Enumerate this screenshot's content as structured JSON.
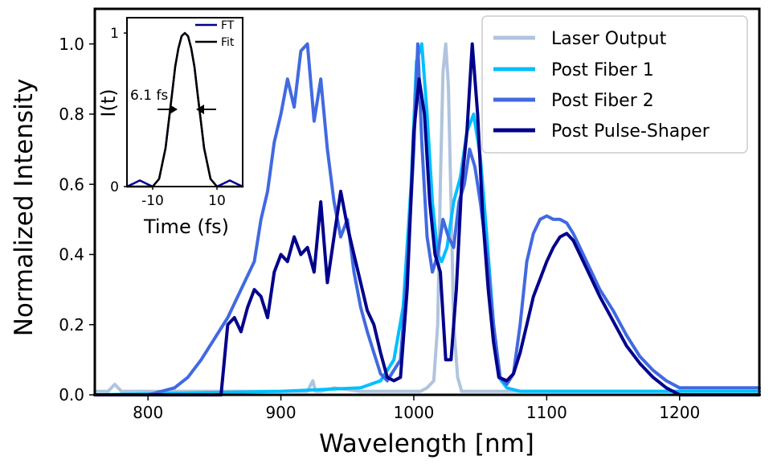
{
  "chart_data": [
    {
      "type": "line",
      "title": "",
      "xlabel": "Wavelength [nm]",
      "ylabel": "Normalized Intensity",
      "xlim": [
        760,
        1260
      ],
      "ylim": [
        0,
        1.1
      ],
      "xticks": [
        800,
        900,
        1000,
        1100,
        1200
      ],
      "xtick_labels": [
        "800",
        "900",
        "1000",
        "1100",
        "1200"
      ],
      "yticks": [
        0,
        0.2,
        0.4,
        0.6,
        0.8,
        1.0
      ],
      "ytick_labels": [
        "0.0",
        "0.2",
        "0.4",
        "0.6",
        "0.8",
        "1.0"
      ],
      "grid": false,
      "legend_position": "top-right",
      "series": [
        {
          "name": "Laser Output",
          "color": "#b0c4de",
          "x": [
            760,
            770,
            775,
            780,
            790,
            800,
            850,
            900,
            920,
            924,
            926,
            930,
            940,
            960,
            980,
            995,
            1005,
            1010,
            1015,
            1018,
            1020,
            1022,
            1024,
            1026,
            1028,
            1030,
            1033,
            1036,
            1040,
            1050,
            1100,
            1200,
            1260
          ],
          "values": [
            0.01,
            0.01,
            0.03,
            0.01,
            0.01,
            0.01,
            0.01,
            0.01,
            0.01,
            0.04,
            0.01,
            0.01,
            0.02,
            0.01,
            0.01,
            0.01,
            0.01,
            0.02,
            0.04,
            0.2,
            0.6,
            0.92,
            1.0,
            0.88,
            0.55,
            0.2,
            0.05,
            0.01,
            0.01,
            0.01,
            0.01,
            0.01,
            0.01
          ]
        },
        {
          "name": "Post Fiber 1",
          "color": "#00bfff",
          "x": [
            760,
            900,
            960,
            975,
            985,
            992,
            998,
            1002,
            1006,
            1010,
            1014,
            1018,
            1021,
            1025,
            1030,
            1035,
            1040,
            1045,
            1050,
            1055,
            1060,
            1064,
            1070,
            1080,
            1260
          ],
          "values": [
            0.0,
            0.01,
            0.02,
            0.04,
            0.1,
            0.25,
            0.6,
            0.95,
            1.0,
            0.8,
            0.55,
            0.4,
            0.38,
            0.42,
            0.55,
            0.62,
            0.75,
            0.8,
            0.68,
            0.45,
            0.2,
            0.05,
            0.02,
            0.01,
            0.01
          ]
        },
        {
          "name": "Post Fiber 2",
          "color": "#4169e1",
          "x": [
            760,
            800,
            820,
            830,
            840,
            850,
            860,
            870,
            880,
            885,
            890,
            895,
            900,
            905,
            910,
            915,
            920,
            925,
            930,
            935,
            940,
            945,
            950,
            955,
            960,
            965,
            970,
            975,
            980,
            990,
            995,
            1000,
            1003,
            1006,
            1010,
            1014,
            1018,
            1022,
            1026,
            1030,
            1034,
            1038,
            1042,
            1046,
            1050,
            1055,
            1060,
            1065,
            1070,
            1075,
            1080,
            1085,
            1090,
            1095,
            1100,
            1105,
            1110,
            1115,
            1120,
            1130,
            1140,
            1150,
            1160,
            1170,
            1180,
            1190,
            1200,
            1210,
            1260
          ],
          "values": [
            0.0,
            0.0,
            0.02,
            0.05,
            0.1,
            0.16,
            0.22,
            0.3,
            0.38,
            0.5,
            0.58,
            0.72,
            0.8,
            0.9,
            0.82,
            0.98,
            1.0,
            0.78,
            0.9,
            0.7,
            0.55,
            0.45,
            0.5,
            0.35,
            0.25,
            0.18,
            0.12,
            0.06,
            0.04,
            0.1,
            0.35,
            0.7,
            1.0,
            0.72,
            0.45,
            0.35,
            0.4,
            0.5,
            0.45,
            0.42,
            0.55,
            0.6,
            0.7,
            0.65,
            0.55,
            0.4,
            0.2,
            0.05,
            0.03,
            0.06,
            0.2,
            0.38,
            0.46,
            0.5,
            0.51,
            0.5,
            0.5,
            0.49,
            0.46,
            0.38,
            0.3,
            0.24,
            0.17,
            0.11,
            0.07,
            0.04,
            0.02,
            0.02,
            0.02
          ]
        },
        {
          "name": "Post Pulse-Shaper",
          "color": "#00008b",
          "x": [
            760,
            850,
            855,
            860,
            865,
            870,
            875,
            880,
            885,
            890,
            895,
            900,
            905,
            910,
            915,
            920,
            925,
            930,
            935,
            940,
            945,
            950,
            955,
            960,
            965,
            970,
            975,
            980,
            985,
            990,
            995,
            1000,
            1004,
            1008,
            1012,
            1016,
            1020,
            1024,
            1028,
            1032,
            1036,
            1040,
            1044,
            1048,
            1052,
            1056,
            1060,
            1064,
            1070,
            1075,
            1080,
            1085,
            1090,
            1095,
            1100,
            1105,
            1110,
            1115,
            1120,
            1130,
            1140,
            1150,
            1160,
            1170,
            1180,
            1190,
            1200,
            1260
          ],
          "values": [
            0.0,
            0.0,
            0.0,
            0.2,
            0.22,
            0.18,
            0.25,
            0.3,
            0.28,
            0.22,
            0.35,
            0.4,
            0.38,
            0.45,
            0.4,
            0.42,
            0.35,
            0.55,
            0.32,
            0.45,
            0.58,
            0.48,
            0.4,
            0.32,
            0.24,
            0.2,
            0.12,
            0.05,
            0.04,
            0.05,
            0.3,
            0.75,
            0.9,
            0.8,
            0.55,
            0.4,
            0.35,
            0.1,
            0.1,
            0.3,
            0.6,
            0.75,
            1.0,
            0.8,
            0.5,
            0.3,
            0.15,
            0.05,
            0.04,
            0.06,
            0.12,
            0.2,
            0.28,
            0.33,
            0.38,
            0.42,
            0.45,
            0.46,
            0.44,
            0.36,
            0.28,
            0.21,
            0.14,
            0.09,
            0.05,
            0.02,
            0.0,
            0.0
          ]
        }
      ]
    },
    {
      "type": "line",
      "title": "",
      "xlabel": "Time (fs)",
      "ylabel": "I(t)",
      "xlim": [
        -18,
        18
      ],
      "ylim": [
        0,
        1.1
      ],
      "xticks": [
        -10,
        10
      ],
      "xtick_labels": [
        "-10",
        "10"
      ],
      "yticks": [
        0,
        1
      ],
      "ytick_labels": [
        "0",
        "1"
      ],
      "grid": false,
      "legend_position": "top-right",
      "annotation": "6.1 fs",
      "series": [
        {
          "name": "FT",
          "color": "#00008b",
          "x": [
            -18,
            -16,
            -14,
            -12,
            -10,
            -8,
            -6,
            -4,
            -3,
            -2,
            -1,
            0,
            1,
            2,
            3,
            4,
            6,
            8,
            10,
            12,
            14,
            16,
            18
          ],
          "values": [
            0.0,
            0.02,
            0.04,
            0.02,
            0.0,
            0.05,
            0.25,
            0.6,
            0.78,
            0.9,
            0.98,
            1.0,
            0.98,
            0.9,
            0.78,
            0.6,
            0.25,
            0.05,
            0.0,
            0.02,
            0.04,
            0.02,
            0.0
          ]
        },
        {
          "name": "Fit",
          "color": "#000000",
          "x": [
            -18,
            -14,
            -10,
            -8,
            -6,
            -4,
            -3,
            -2,
            -1,
            0,
            1,
            2,
            3,
            4,
            6,
            8,
            10,
            14,
            18
          ],
          "values": [
            0.0,
            0.0,
            0.0,
            0.05,
            0.25,
            0.6,
            0.78,
            0.9,
            0.98,
            1.0,
            0.98,
            0.9,
            0.78,
            0.6,
            0.25,
            0.05,
            0.0,
            0.0,
            0.0
          ]
        }
      ]
    }
  ]
}
